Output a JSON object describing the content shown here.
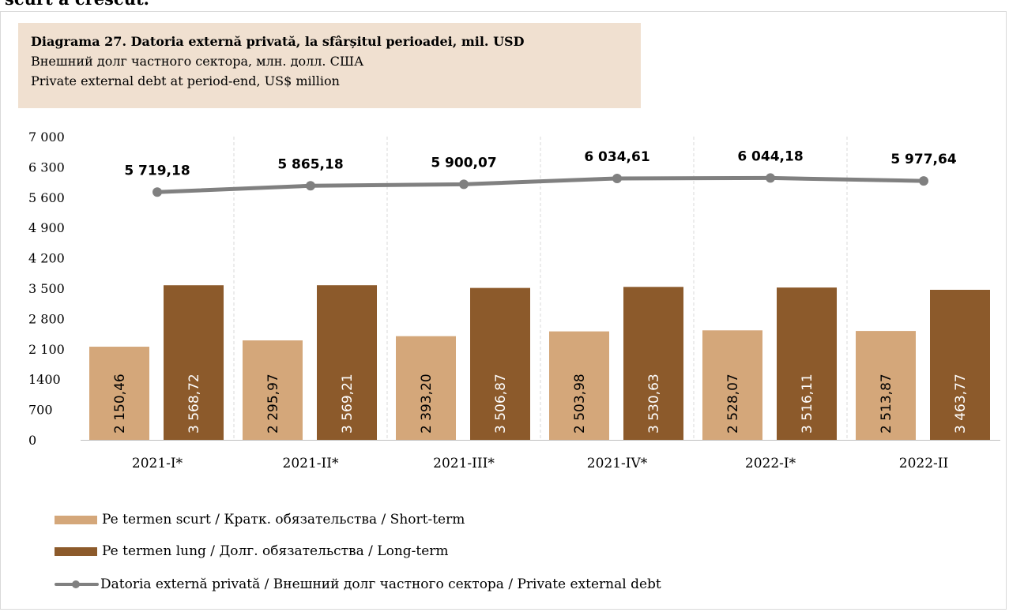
{
  "header_fragment": "scurt a crescut.",
  "title": {
    "line1": "Diagrama 27. Datoria externă privată, la sfârșitul perioadei, mil. USD",
    "line2": "Внешний долг частного сектора, млн. долл. США",
    "line3": "Private external debt at period-end, US$ million"
  },
  "colors": {
    "short_term": "#d4a77a",
    "long_term": "#8c5a2b",
    "total_line": "#808080",
    "title_bg": "#f0e0d0",
    "grid": "#d9d9d9"
  },
  "chart_data": {
    "type": "bar",
    "categories": [
      "2021-I*",
      "2021-II*",
      "2021-III*",
      "2021-IV*",
      "2022-I*",
      "2022-II"
    ],
    "ylim": [
      0,
      7000
    ],
    "yticks": [
      "0",
      "700",
      "1400",
      "2 100",
      "2 800",
      "3 500",
      "4 200",
      "4 900",
      "5 600",
      "6 300",
      "7 000"
    ],
    "series": [
      {
        "name": "Pe termen scurt / Кратк. обязательства  / Short-term",
        "type": "bar",
        "values": [
          2150.46,
          2295.97,
          2393.2,
          2503.98,
          2528.07,
          2513.87
        ],
        "labels": [
          "2 150,46",
          "2 295,97",
          "2 393,20",
          "2 503,98",
          "2 528,07",
          "2 513,87"
        ]
      },
      {
        "name": "Pe termen lung  / Долг. обязательства  / Long-term",
        "type": "bar",
        "values": [
          3568.72,
          3569.21,
          3506.87,
          3530.63,
          3516.11,
          3463.77
        ],
        "labels": [
          "3 568,72",
          "3 569,21",
          "3 506,87",
          "3 530,63",
          "3 516,11",
          "3 463,77"
        ]
      },
      {
        "name": "Datoria externă privată  / Внешний долг частного сектора / Private external debt",
        "type": "line",
        "values": [
          5719.18,
          5865.18,
          5900.07,
          6034.61,
          6044.18,
          5977.64
        ],
        "labels": [
          "5 719,18",
          "5 865,18",
          "5 900,07",
          "6 034,61",
          "6 044,18",
          "5 977,64"
        ]
      }
    ],
    "grid": "vertical dashed separators between categories",
    "legend_position": "bottom"
  },
  "legend": {
    "short_term": "Pe termen scurt / Кратк. обязательства  / Short-term",
    "long_term": "Pe termen lung  / Долг. обязательства  / Long-term",
    "total": "Datoria externă privată  / Внешний долг частного сектора / Private external debt"
  }
}
